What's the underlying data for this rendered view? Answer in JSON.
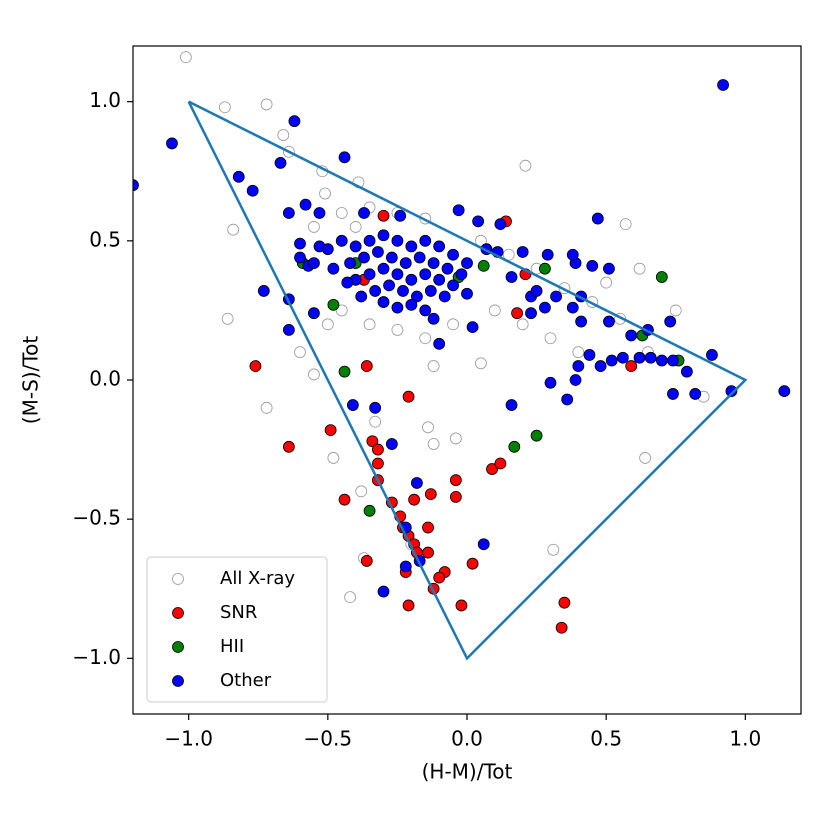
{
  "chart_data": {
    "type": "scatter",
    "xlabel": "(H-M)/Tot",
    "ylabel": "(M-S)/Tot",
    "xlim": [
      -1.2,
      1.2
    ],
    "ylim": [
      -1.2,
      1.2
    ],
    "xticks": [
      {
        "value": -1.0,
        "label": "−1.0"
      },
      {
        "value": -0.5,
        "label": "−0.5"
      },
      {
        "value": 0.0,
        "label": "0.0"
      },
      0.5,
      {
        "value": 1.0,
        "label": "1.0"
      }
    ],
    "yticks": [
      {
        "value": -1.0,
        "label": "−1.0"
      },
      {
        "value": -0.5,
        "label": "−0.5"
      },
      {
        "value": 0.0,
        "label": "0.0"
      },
      0.5,
      {
        "value": 1.0,
        "label": "1.0"
      }
    ],
    "legend": "lower left",
    "boundary": {
      "x": [
        -1,
        1,
        0,
        -1
      ],
      "y": [
        1,
        0,
        -1,
        1
      ],
      "color": "#1f77b4"
    },
    "series": [
      {
        "name": "All X-ray",
        "color": "none",
        "edgecolor": "#999999",
        "x": [
          -1.01,
          -0.87,
          -0.72,
          -0.66,
          -0.64,
          -0.84,
          -0.86,
          -0.72,
          -0.6,
          -0.55,
          -0.48,
          -0.38,
          -0.37,
          -0.42,
          -0.12,
          -0.04,
          -0.14,
          0.21,
          0.57,
          0.62,
          0.64,
          0.31,
          0.75,
          0.85,
          0.05,
          -0.12,
          -0.33,
          -0.2,
          -0.52,
          -0.39,
          -0.51,
          -0.45,
          -0.35,
          -0.25,
          -0.15,
          -0.55,
          -0.4,
          0.05,
          0.15,
          0.25,
          0.35,
          0.45,
          0.55,
          0.3,
          0.2,
          0.1,
          -0.5,
          -0.45,
          -0.35,
          -0.25,
          -0.15,
          -0.05,
          0.4,
          0.65,
          0.5
        ],
        "values": [
          1.16,
          0.98,
          0.99,
          0.88,
          0.82,
          0.54,
          0.22,
          -0.1,
          0.1,
          0.02,
          -0.28,
          -0.4,
          -0.64,
          -0.78,
          -0.23,
          -0.21,
          -0.17,
          0.77,
          0.56,
          0.4,
          -0.28,
          -0.61,
          0.25,
          -0.06,
          0.06,
          0.05,
          -0.15,
          -0.59,
          0.75,
          0.71,
          0.67,
          0.6,
          0.62,
          0.6,
          0.58,
          0.55,
          0.55,
          0.5,
          0.45,
          0.4,
          0.33,
          0.28,
          0.22,
          0.15,
          0.2,
          0.25,
          0.2,
          0.25,
          0.2,
          0.18,
          0.15,
          0.2,
          0.1,
          0.1,
          0.35
        ]
      },
      {
        "name": "SNR",
        "color": "#ff0000",
        "edgecolor": "#000000",
        "x": [
          -0.3,
          0.14,
          -0.76,
          -0.36,
          -0.64,
          -0.49,
          -0.21,
          -0.34,
          -0.32,
          -0.32,
          -0.32,
          -0.44,
          -0.27,
          -0.19,
          -0.13,
          -0.04,
          -0.04,
          0.09,
          0.12,
          -0.24,
          -0.23,
          -0.14,
          -0.21,
          -0.19,
          -0.18,
          -0.14,
          -0.22,
          -0.36,
          -0.08,
          -0.1,
          -0.12,
          -0.21,
          -0.02,
          0.02,
          0.35,
          0.34,
          0.59,
          0.18,
          0.21,
          -0.37
        ],
        "values": [
          0.59,
          0.57,
          0.05,
          0.05,
          -0.24,
          -0.18,
          -0.06,
          -0.22,
          -0.25,
          -0.3,
          -0.36,
          -0.43,
          -0.44,
          -0.43,
          -0.41,
          -0.36,
          -0.42,
          -0.32,
          -0.3,
          -0.49,
          -0.53,
          -0.53,
          -0.56,
          -0.59,
          -0.62,
          -0.62,
          -0.69,
          -0.65,
          -0.69,
          -0.71,
          -0.75,
          -0.81,
          -0.81,
          -0.66,
          -0.8,
          -0.89,
          0.05,
          0.24,
          0.38,
          0.36
        ]
      },
      {
        "name": "HII",
        "color": "#008000",
        "edgecolor": "#000000",
        "x": [
          -0.4,
          -0.59,
          -0.48,
          -0.44,
          -0.35,
          0.17,
          0.25,
          -0.03,
          0.06,
          0.28,
          0.7,
          0.76,
          0.63
        ],
        "values": [
          0.42,
          0.42,
          0.27,
          0.03,
          -0.47,
          -0.24,
          -0.2,
          0.37,
          0.41,
          0.4,
          0.37,
          0.07,
          0.16
        ]
      },
      {
        "name": "Other",
        "color": "#0000ff",
        "edgecolor": "#000000",
        "x": [
          0.92,
          -1.06,
          -0.62,
          -0.44,
          -0.82,
          -0.77,
          -0.67,
          -1.2,
          -0.64,
          -0.58,
          -0.53,
          -0.6,
          -0.64,
          -0.73,
          -0.64,
          -0.55,
          -0.57,
          -0.53,
          -0.37,
          -0.24,
          -0.03,
          0.04,
          0.12,
          0.47,
          -0.41,
          -0.33,
          -0.27,
          -0.18,
          -0.22,
          -0.17,
          -0.22,
          -0.3,
          0.06,
          0.16,
          0.3,
          0.36,
          0.39,
          0.4,
          0.44,
          0.48,
          0.52,
          0.56,
          0.62,
          0.66,
          0.7,
          0.74,
          0.79,
          0.74,
          0.82,
          0.88,
          0.95,
          1.14,
          0.73,
          0.65,
          0.59,
          0.51,
          0.41,
          0.38,
          0.41,
          0.32,
          0.28,
          0.23,
          0.23,
          0.45,
          0.51,
          0.39,
          0.38,
          0.29,
          0.2,
          0.11,
          0.07,
          0.16,
          0.25,
          0.02,
          -0.1,
          0.0,
          -0.4,
          -0.35,
          -0.3,
          -0.25,
          -0.2,
          -0.15,
          -0.1,
          -0.05,
          0.0,
          -0.42,
          -0.37,
          -0.32,
          -0.27,
          -0.22,
          -0.17,
          -0.12,
          -0.07,
          -0.02,
          -0.4,
          -0.35,
          -0.3,
          -0.25,
          -0.2,
          -0.15,
          -0.1,
          -0.05,
          -0.33,
          -0.28,
          -0.23,
          -0.18,
          -0.13,
          -0.08,
          -0.3,
          -0.25,
          -0.2,
          -0.15,
          -0.12,
          -0.45,
          -0.5,
          -0.48,
          -0.55,
          -0.38,
          -0.43,
          -0.6
        ],
        "values": [
          1.06,
          0.85,
          0.93,
          0.8,
          0.73,
          0.68,
          0.78,
          0.7,
          0.6,
          0.63,
          0.6,
          0.49,
          0.29,
          0.32,
          0.18,
          0.24,
          0.41,
          0.48,
          0.6,
          0.59,
          0.61,
          0.57,
          0.56,
          0.58,
          -0.09,
          -0.1,
          -0.23,
          -0.37,
          -0.53,
          -0.65,
          -0.67,
          -0.76,
          -0.59,
          -0.09,
          -0.01,
          -0.07,
          0.0,
          0.05,
          0.09,
          0.05,
          0.07,
          0.08,
          0.08,
          0.08,
          0.07,
          0.07,
          0.03,
          -0.05,
          -0.05,
          0.09,
          -0.04,
          -0.04,
          0.21,
          0.18,
          0.16,
          0.21,
          0.21,
          0.26,
          0.3,
          0.3,
          0.26,
          0.3,
          0.24,
          0.41,
          0.4,
          0.42,
          0.45,
          0.45,
          0.46,
          0.46,
          0.47,
          0.37,
          0.32,
          0.19,
          0.13,
          0.31,
          0.48,
          0.5,
          0.52,
          0.5,
          0.48,
          0.5,
          0.48,
          0.45,
          0.42,
          0.42,
          0.44,
          0.46,
          0.44,
          0.42,
          0.44,
          0.42,
          0.4,
          0.38,
          0.36,
          0.38,
          0.4,
          0.38,
          0.36,
          0.38,
          0.36,
          0.34,
          0.32,
          0.34,
          0.32,
          0.3,
          0.32,
          0.3,
          0.28,
          0.26,
          0.27,
          0.25,
          0.22,
          0.5,
          0.47,
          0.4,
          0.42,
          0.3,
          0.35,
          0.44
        ]
      }
    ]
  }
}
